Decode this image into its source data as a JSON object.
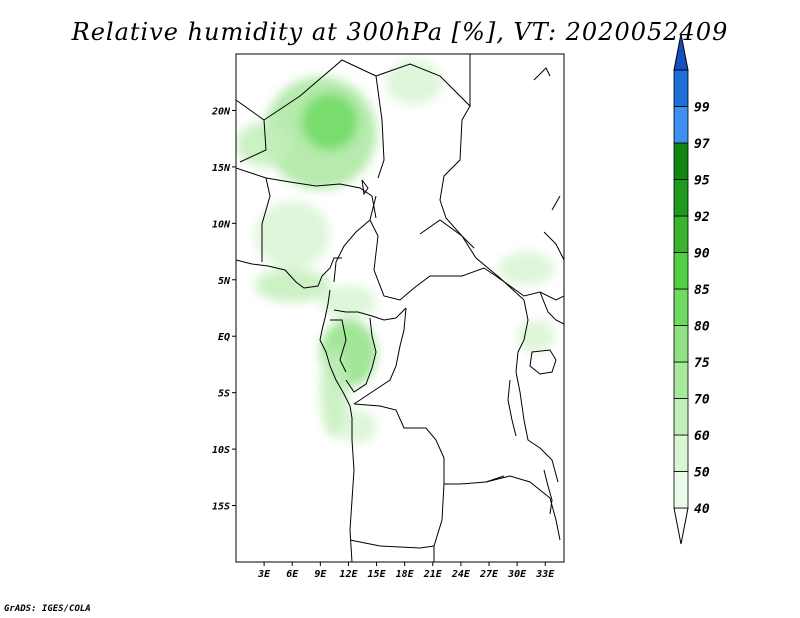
{
  "title": "Relative humidity at 300hPa [%], VT: 2020052409",
  "credit": "GrADS: IGES/COLA",
  "map": {
    "lon_range": [
      0,
      35
    ],
    "lat_range": [
      -20,
      25
    ],
    "lat_ticks": [
      {
        "value": 20,
        "label": "20N"
      },
      {
        "value": 15,
        "label": "15N"
      },
      {
        "value": 10,
        "label": "10N"
      },
      {
        "value": 5,
        "label": "5N"
      },
      {
        "value": 0,
        "label": "EQ"
      },
      {
        "value": -5,
        "label": "5S"
      },
      {
        "value": -10,
        "label": "10S"
      },
      {
        "value": -15,
        "label": "15S"
      }
    ],
    "lon_ticks": [
      {
        "value": 3,
        "label": "3E"
      },
      {
        "value": 6,
        "label": "6E"
      },
      {
        "value": 9,
        "label": "9E"
      },
      {
        "value": 12,
        "label": "12E"
      },
      {
        "value": 15,
        "label": "15E"
      },
      {
        "value": 18,
        "label": "18E"
      },
      {
        "value": 21,
        "label": "21E"
      },
      {
        "value": 24,
        "label": "24E"
      },
      {
        "value": 27,
        "label": "27E"
      },
      {
        "value": 30,
        "label": "30E"
      },
      {
        "value": 33,
        "label": "33E"
      }
    ],
    "border_color": "#000000"
  },
  "colorbar": {
    "levels": [
      {
        "label": "40",
        "color": "#ebfbe9"
      },
      {
        "label": "50",
        "color": "#d9f5d4"
      },
      {
        "label": "60",
        "color": "#c3efbb"
      },
      {
        "label": "70",
        "color": "#a9e89f"
      },
      {
        "label": "75",
        "color": "#8fe284"
      },
      {
        "label": "80",
        "color": "#6fda62"
      },
      {
        "label": "85",
        "color": "#52d044"
      },
      {
        "label": "90",
        "color": "#3ab42f"
      },
      {
        "label": "92",
        "color": "#1f9a1d"
      },
      {
        "label": "95",
        "color": "#138511"
      },
      {
        "label": "97",
        "color": "#3e8ff0"
      },
      {
        "label": "99",
        "color": "#1e6fd8"
      }
    ],
    "over_color": "#1550c0",
    "under_color": "#ffffff"
  },
  "humidity_features": [
    {
      "name": "sahel-north-band",
      "lon": 9,
      "lat": 18,
      "rx": 6,
      "ry": 5,
      "level": 70
    },
    {
      "name": "niger-north-core",
      "lon": 10,
      "lat": 19,
      "rx": 3,
      "ry": 2.5,
      "level": 80
    },
    {
      "name": "west-band",
      "lon": 3,
      "lat": 17,
      "rx": 3,
      "ry": 2,
      "level": 60
    },
    {
      "name": "nigeria-patch",
      "lon": 6,
      "lat": 9,
      "rx": 4,
      "ry": 3,
      "level": 50
    },
    {
      "name": "gulf-guinea-band",
      "lon": 6,
      "lat": 4.5,
      "rx": 4,
      "ry": 1.5,
      "level": 60
    },
    {
      "name": "cameroon-strip",
      "lon": 12,
      "lat": 3,
      "rx": 3,
      "ry": 1.5,
      "level": 50
    },
    {
      "name": "gabon-congo-core",
      "lon": 12,
      "lat": -1.5,
      "rx": 3,
      "ry": 3,
      "level": 75
    },
    {
      "name": "congo-coast-strip",
      "lon": 10.5,
      "lat": -5,
      "rx": 1.5,
      "ry": 4,
      "level": 60
    },
    {
      "name": "angola-north-patch",
      "lon": 13,
      "lat": -8,
      "rx": 2,
      "ry": 1.5,
      "level": 50
    },
    {
      "name": "east-africa-patch",
      "lon": 31,
      "lat": 6,
      "rx": 3,
      "ry": 1.5,
      "level": 50
    },
    {
      "name": "lake-victoria-patch",
      "lon": 32,
      "lat": 0,
      "rx": 2,
      "ry": 1.5,
      "level": 50
    },
    {
      "name": "libya-south-patch",
      "lon": 19,
      "lat": 22.5,
      "rx": 3,
      "ry": 2,
      "level": 50
    }
  ]
}
